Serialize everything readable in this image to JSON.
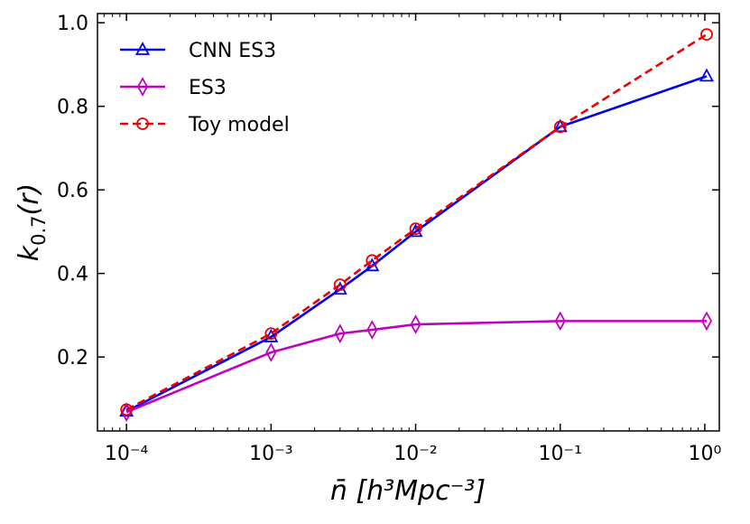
{
  "chart_data": {
    "type": "line",
    "xlabel": "n̄ [h³Mpc⁻³]",
    "ylabel": "k",
    "ylabel_sub": "0.7",
    "ylabel_tail": "(r)",
    "x": [
      0.0001,
      0.001,
      0.003,
      0.005,
      0.01,
      0.1,
      1.03
    ],
    "series": [
      {
        "name": "CNN ES3",
        "color": "#0000ee",
        "marker": "triangle",
        "dash": false,
        "values": [
          0.07,
          0.248,
          0.362,
          0.418,
          0.5,
          0.751,
          0.872
        ]
      },
      {
        "name": "ES3",
        "color": "#bf00bf",
        "marker": "diamond",
        "dash": false,
        "values": [
          0.068,
          0.211,
          0.256,
          0.265,
          0.278,
          0.286,
          0.286
        ]
      },
      {
        "name": "Toy model",
        "color": "#ee0000",
        "marker": "circle",
        "dash": true,
        "values": [
          0.074,
          0.256,
          0.373,
          0.431,
          0.507,
          0.751,
          0.972
        ]
      }
    ],
    "xscale": "log",
    "xlim": [
      6.3e-05,
      1.26
    ],
    "xticks": [
      {
        "value": 0.0001,
        "label": "10⁻⁴"
      },
      {
        "value": 0.001,
        "label": "10⁻³"
      },
      {
        "value": 0.01,
        "label": "10⁻²"
      },
      {
        "value": 0.1,
        "label": "10⁻¹"
      },
      {
        "value": 1,
        "label": "10⁰"
      }
    ],
    "ylim": [
      0.023,
      1.022
    ],
    "yticks": [
      0.2,
      0.4,
      0.6,
      {
        "value": 0.8,
        "label": "0.8"
      },
      {
        "value": 1.0,
        "label": "1.0"
      }
    ],
    "legend": "upper left",
    "grid": false
  }
}
